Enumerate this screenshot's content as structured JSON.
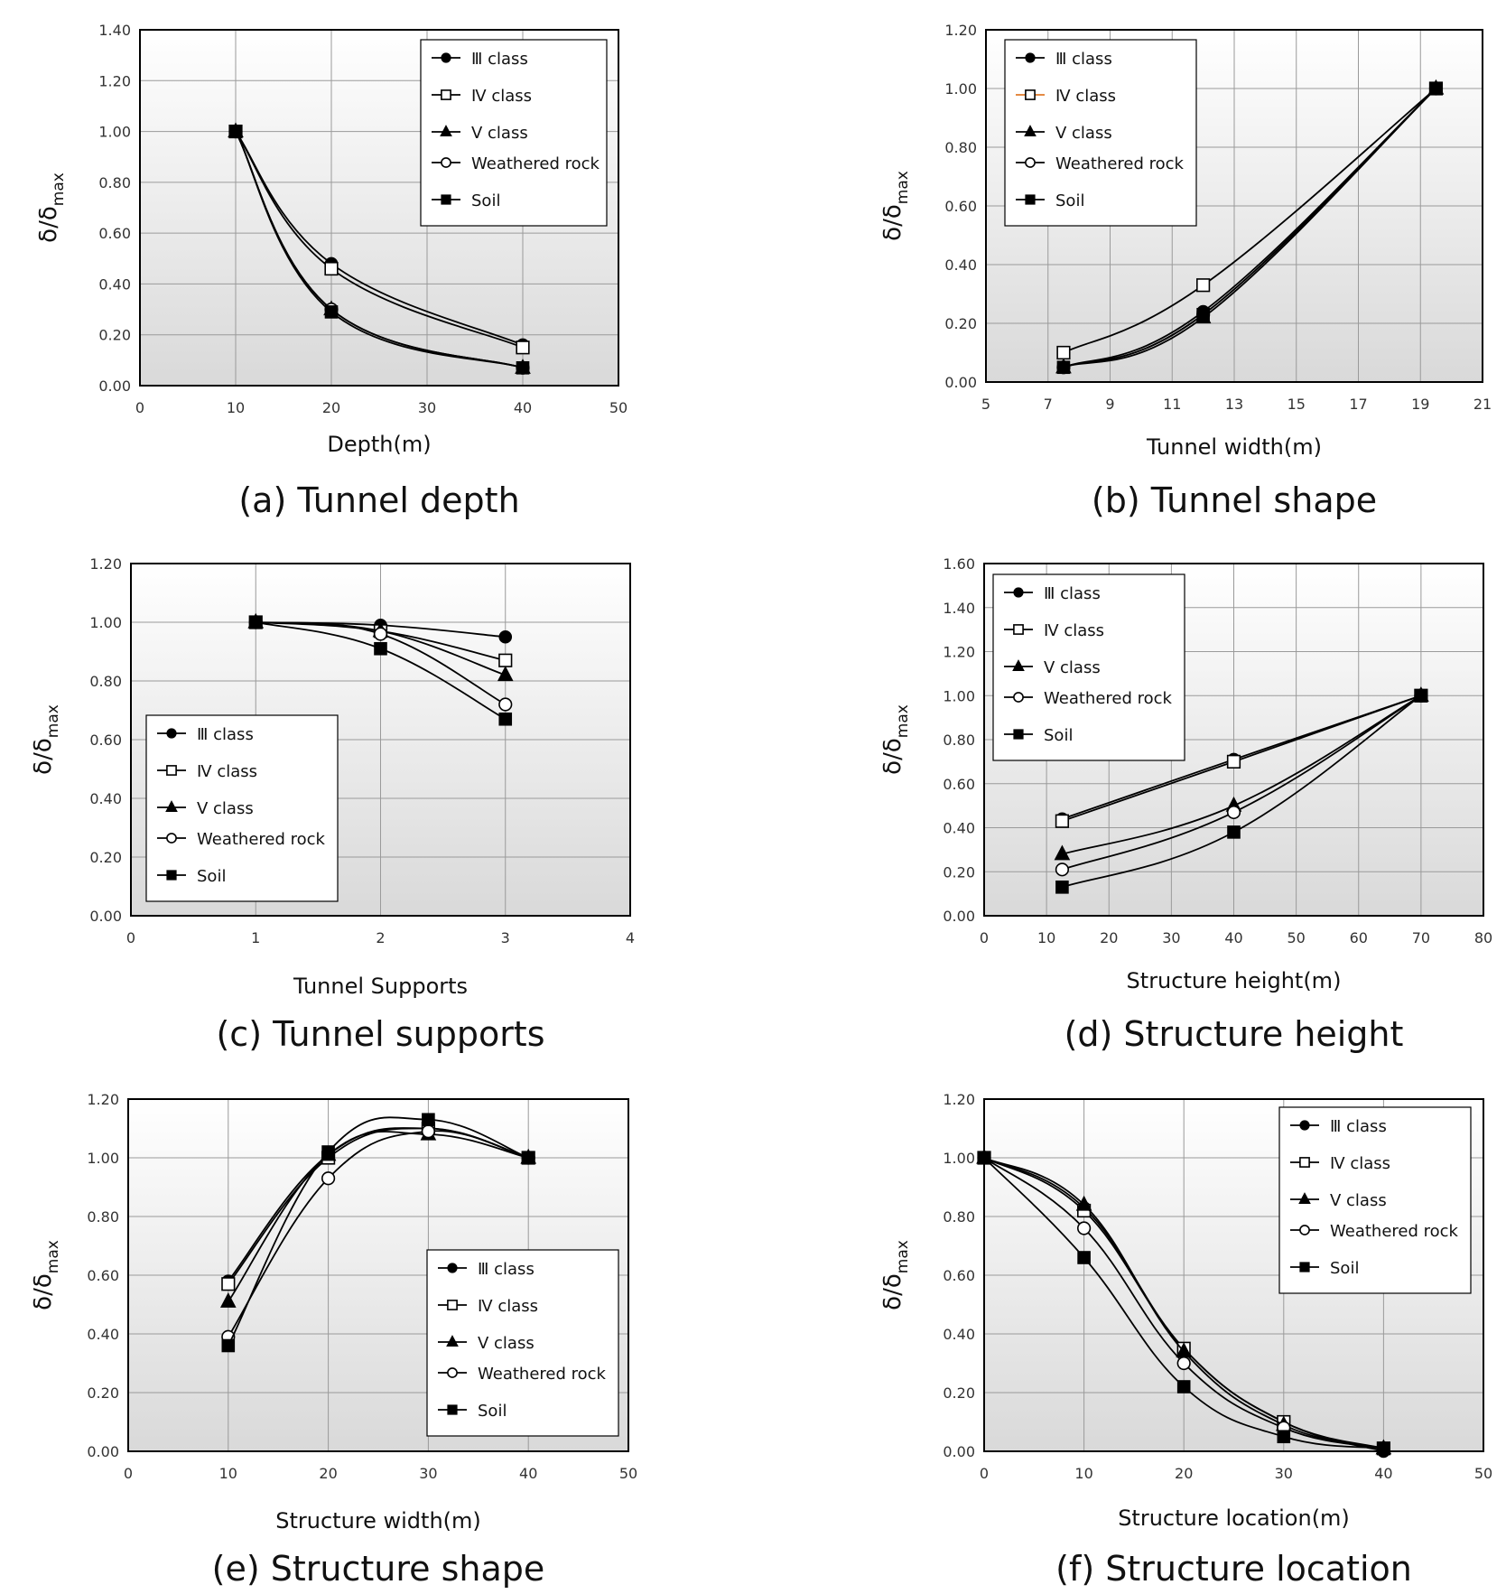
{
  "chart_data": [
    {
      "type": "line",
      "caption": "(a) Tunnel depth",
      "xlabel": "Depth(m)",
      "ylabel": "δ/δmax",
      "ylabel_main": "δ/δ",
      "ylabel_sub": "max",
      "xlim": [
        0,
        50
      ],
      "xticks": [
        0,
        10,
        20,
        30,
        40,
        50
      ],
      "ylim": [
        0,
        1.4
      ],
      "yticks": [
        0,
        0.2,
        0.4,
        0.6,
        0.8,
        1.0,
        1.2,
        1.4
      ],
      "legend_position": "top-right",
      "x": [
        10,
        20,
        40
      ],
      "series": [
        {
          "name": "Ⅲ class",
          "marker": "filled-circle",
          "values": [
            1.0,
            0.48,
            0.16
          ]
        },
        {
          "name": "Ⅳ class",
          "marker": "open-square",
          "values": [
            1.0,
            0.46,
            0.15
          ]
        },
        {
          "name": "Ⅴ class",
          "marker": "filled-triangle",
          "values": [
            1.0,
            0.3,
            0.07
          ]
        },
        {
          "name": "Weathered rock",
          "marker": "open-circle",
          "values": [
            1.0,
            0.3,
            0.07
          ]
        },
        {
          "name": "Soil",
          "marker": "filled-square",
          "values": [
            1.0,
            0.29,
            0.07
          ]
        }
      ]
    },
    {
      "type": "line",
      "caption": "(b) Tunnel shape",
      "xlabel": "Tunnel width(m)",
      "ylabel": "δ/δmax",
      "ylabel_main": "δ/δ",
      "ylabel_sub": "max",
      "xlim": [
        5,
        21
      ],
      "xticks": [
        5,
        7,
        9,
        11,
        13,
        15,
        17,
        19,
        21
      ],
      "ylim": [
        0,
        1.2
      ],
      "yticks": [
        0,
        0.2,
        0.4,
        0.6,
        0.8,
        1.0,
        1.2
      ],
      "legend_position": "top-left",
      "x": [
        7.5,
        12,
        19.5
      ],
      "series": [
        {
          "name": "Ⅲ class",
          "marker": "filled-circle",
          "values": [
            0.05,
            0.24,
            1.0
          ]
        },
        {
          "name": "Ⅳ class",
          "marker": "open-square",
          "values": [
            0.1,
            0.33,
            1.0
          ]
        },
        {
          "name": "Ⅴ class",
          "marker": "filled-triangle",
          "values": [
            0.05,
            0.22,
            1.0
          ]
        },
        {
          "name": "Weathered rock",
          "marker": "open-circle",
          "values": [
            0.05,
            0.23,
            1.0
          ]
        },
        {
          "name": "Soil",
          "marker": "filled-square",
          "values": [
            0.05,
            0.23,
            1.0
          ]
        }
      ]
    },
    {
      "type": "line",
      "caption": "(c) Tunnel supports",
      "xlabel": "Tunnel Supports",
      "ylabel": "δ/δmax",
      "ylabel_main": "δ/δ",
      "ylabel_sub": "max",
      "xlim": [
        0,
        4
      ],
      "xticks": [
        0,
        1,
        2,
        3,
        4
      ],
      "ylim": [
        0,
        1.2
      ],
      "yticks": [
        0,
        0.2,
        0.4,
        0.6,
        0.8,
        1.0,
        1.2
      ],
      "legend_position": "bottom-left",
      "x": [
        1,
        2,
        3
      ],
      "series": [
        {
          "name": "Ⅲ class",
          "marker": "filled-circle",
          "values": [
            1.0,
            0.99,
            0.95
          ]
        },
        {
          "name": "Ⅳ class",
          "marker": "open-square",
          "values": [
            1.0,
            0.97,
            0.87
          ]
        },
        {
          "name": "Ⅴ class",
          "marker": "filled-triangle",
          "values": [
            1.0,
            0.97,
            0.82
          ]
        },
        {
          "name": "Weathered rock",
          "marker": "open-circle",
          "values": [
            1.0,
            0.96,
            0.72
          ]
        },
        {
          "name": "Soil",
          "marker": "filled-square",
          "values": [
            1.0,
            0.91,
            0.67
          ]
        }
      ]
    },
    {
      "type": "line",
      "caption": "(d) Structure height",
      "xlabel": "Structure height(m)",
      "ylabel": "δ/δmax",
      "ylabel_main": "δ/δ",
      "ylabel_sub": "max",
      "xlim": [
        0,
        80
      ],
      "xticks": [
        0,
        10,
        20,
        30,
        40,
        50,
        60,
        70,
        80
      ],
      "ylim": [
        0,
        1.6
      ],
      "yticks": [
        0,
        0.2,
        0.4,
        0.6,
        0.8,
        1.0,
        1.2,
        1.4,
        1.6
      ],
      "legend_position": "top-left",
      "x": [
        12.5,
        40,
        70
      ],
      "series": [
        {
          "name": "Ⅲ class",
          "marker": "filled-circle",
          "values": [
            0.44,
            0.71,
            1.0
          ]
        },
        {
          "name": "Ⅳ class",
          "marker": "open-square",
          "values": [
            0.43,
            0.7,
            1.0
          ]
        },
        {
          "name": "Ⅴ class",
          "marker": "filled-triangle",
          "values": [
            0.28,
            0.5,
            1.0
          ]
        },
        {
          "name": "Weathered rock",
          "marker": "open-circle",
          "values": [
            0.21,
            0.47,
            1.0
          ]
        },
        {
          "name": "Soil",
          "marker": "filled-square",
          "values": [
            0.13,
            0.38,
            1.0
          ]
        }
      ]
    },
    {
      "type": "line",
      "caption": "(e) Structure shape",
      "xlabel": "Structure width(m)",
      "ylabel": "δ/δmax",
      "ylabel_main": "δ/δ",
      "ylabel_sub": "max",
      "xlim": [
        0,
        50
      ],
      "xticks": [
        0,
        10,
        20,
        30,
        40,
        50
      ],
      "ylim": [
        0,
        1.2
      ],
      "yticks": [
        0,
        0.2,
        0.4,
        0.6,
        0.8,
        1.0,
        1.2
      ],
      "legend_position": "bottom-right",
      "x": [
        10,
        20,
        30,
        40
      ],
      "series": [
        {
          "name": "Ⅲ class",
          "marker": "filled-circle",
          "values": [
            0.58,
            1.01,
            1.1,
            1.0
          ]
        },
        {
          "name": "Ⅳ class",
          "marker": "open-square",
          "values": [
            0.57,
            1.0,
            1.1,
            1.0
          ]
        },
        {
          "name": "Ⅴ class",
          "marker": "filled-triangle",
          "values": [
            0.51,
            1.01,
            1.08,
            1.0
          ]
        },
        {
          "name": "Weathered rock",
          "marker": "open-circle",
          "values": [
            0.39,
            0.93,
            1.09,
            1.0
          ]
        },
        {
          "name": "Soil",
          "marker": "filled-square",
          "values": [
            0.36,
            1.02,
            1.13,
            1.0
          ]
        }
      ]
    },
    {
      "type": "line",
      "caption": "(f) Structure location",
      "xlabel": "Structure location(m)",
      "ylabel": "δ/δmax",
      "ylabel_main": "δ/δ",
      "ylabel_sub": "max",
      "xlim": [
        0,
        50
      ],
      "xticks": [
        0,
        10,
        20,
        30,
        40,
        50
      ],
      "ylim": [
        0,
        1.2
      ],
      "yticks": [
        0,
        0.2,
        0.4,
        0.6,
        0.8,
        1.0,
        1.2
      ],
      "legend_position": "top-right",
      "x": [
        0,
        10,
        20,
        30,
        40
      ],
      "series": [
        {
          "name": "Ⅲ class",
          "marker": "filled-circle",
          "values": [
            1.0,
            0.83,
            0.35,
            0.1,
            0.0
          ]
        },
        {
          "name": "Ⅳ class",
          "marker": "open-square",
          "values": [
            1.0,
            0.82,
            0.35,
            0.1,
            0.01
          ]
        },
        {
          "name": "Ⅴ class",
          "marker": "filled-triangle",
          "values": [
            1.0,
            0.84,
            0.34,
            0.09,
            0.01
          ]
        },
        {
          "name": "Weathered rock",
          "marker": "open-circle",
          "values": [
            1.0,
            0.76,
            0.3,
            0.08,
            0.01
          ]
        },
        {
          "name": "Soil",
          "marker": "filled-square",
          "values": [
            1.0,
            0.66,
            0.22,
            0.05,
            0.01
          ]
        }
      ]
    }
  ]
}
